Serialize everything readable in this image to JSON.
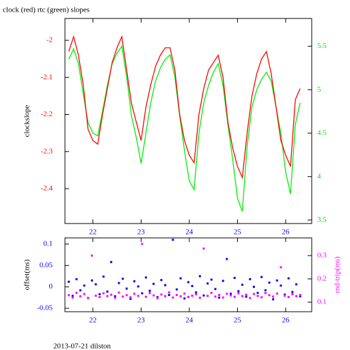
{
  "footer": "2013-07-21 dilston",
  "chart_data": [
    {
      "type": "line",
      "title": "clock (red) rtc (green) slopes",
      "y_label": "clockslope",
      "xlim": [
        21.42,
        26.54
      ],
      "xticks": [
        22,
        23,
        24,
        25,
        26
      ],
      "xtick_color": "#0000ff",
      "ylim": [
        -2.494,
        -1.941
      ],
      "yticks": [
        -2.4,
        -2.3,
        -2.2,
        -2.1,
        -2
      ],
      "ytick_color": "#ff0000",
      "y2lim": [
        3.46,
        5.82
      ],
      "y2ticks": [
        3.5,
        4,
        4.5,
        5,
        5.5
      ],
      "y2tick_color": "#00dd00",
      "x": [
        21.5,
        21.6,
        21.7,
        21.8,
        21.9,
        22.0,
        22.1,
        22.2,
        22.3,
        22.4,
        22.5,
        22.6,
        22.7,
        22.8,
        22.9,
        23.0,
        23.1,
        23.2,
        23.3,
        23.4,
        23.5,
        23.6,
        23.7,
        23.8,
        23.9,
        24.0,
        24.1,
        24.2,
        24.3,
        24.4,
        24.5,
        24.6,
        24.7,
        24.8,
        24.9,
        25.0,
        25.1,
        25.2,
        25.3,
        25.4,
        25.5,
        25.6,
        25.7,
        25.8,
        25.9,
        26.0,
        26.1,
        26.2,
        26.3
      ],
      "series": [
        {
          "color": "#00ee00",
          "axis": "y2",
          "values": [
            5.35,
            5.47,
            5.3,
            4.95,
            4.62,
            4.5,
            4.47,
            4.75,
            5.05,
            5.3,
            5.42,
            5.5,
            5.15,
            4.7,
            4.45,
            4.15,
            4.5,
            4.85,
            5.1,
            5.25,
            5.35,
            5.4,
            5.15,
            4.7,
            4.3,
            3.95,
            3.85,
            4.5,
            4.85,
            5.05,
            5.2,
            5.3,
            5.05,
            4.6,
            4.2,
            3.75,
            3.6,
            4.35,
            4.8,
            5.0,
            5.12,
            5.2,
            5.1,
            4.8,
            4.5,
            4.05,
            3.8,
            4.6,
            4.85
          ]
        },
        {
          "color": "#ff0000",
          "axis": "y",
          "values": [
            -2.03,
            -1.99,
            -2.04,
            -2.12,
            -2.24,
            -2.27,
            -2.28,
            -2.2,
            -2.13,
            -2.06,
            -2.02,
            -1.99,
            -2.08,
            -2.17,
            -2.22,
            -2.27,
            -2.18,
            -2.12,
            -2.07,
            -2.04,
            -2.02,
            -2.02,
            -2.08,
            -2.2,
            -2.27,
            -2.31,
            -2.33,
            -2.2,
            -2.13,
            -2.08,
            -2.06,
            -2.04,
            -2.1,
            -2.22,
            -2.29,
            -2.34,
            -2.37,
            -2.25,
            -2.15,
            -2.09,
            -2.05,
            -2.03,
            -2.09,
            -2.18,
            -2.27,
            -2.31,
            -2.34,
            -2.16,
            -2.13
          ]
        }
      ]
    },
    {
      "type": "scatter",
      "y_label": "offset(ms)",
      "y2_label": "rnd-trip(ms)",
      "xlim": [
        21.42,
        26.54
      ],
      "xticks": [
        22,
        23,
        24,
        25,
        26
      ],
      "xtick_color": "#0000ff",
      "ylim": [
        -0.058,
        0.1144
      ],
      "yticks": [
        -0.05,
        0,
        0.05,
        0.1
      ],
      "ytick_color": "#0000ff",
      "y2lim": [
        0.059,
        0.376
      ],
      "y2ticks": [
        0.1,
        0.2,
        0.3
      ],
      "y2tick_color": "#ff00ff",
      "x": [
        21.5,
        21.58,
        21.66,
        21.74,
        21.82,
        21.9,
        21.98,
        22.06,
        22.14,
        22.22,
        22.3,
        22.38,
        22.46,
        22.54,
        22.62,
        22.7,
        22.78,
        22.86,
        22.94,
        23.02,
        23.1,
        23.18,
        23.26,
        23.34,
        23.42,
        23.5,
        23.58,
        23.66,
        23.74,
        23.82,
        23.9,
        23.98,
        24.06,
        24.14,
        24.22,
        24.3,
        24.38,
        24.46,
        24.54,
        24.62,
        24.7,
        24.78,
        24.86,
        24.94,
        25.02,
        25.1,
        25.18,
        25.26,
        25.34,
        25.42,
        25.5,
        25.58,
        25.66,
        25.74,
        25.82,
        25.9,
        25.98,
        26.06,
        26.14,
        26.22,
        26.3
      ],
      "series": [
        {
          "color": "#0000ff",
          "axis": "y",
          "values": [
            0.012,
            -0.021,
            0.018,
            -0.008,
            0.003,
            -0.026,
            0.015,
            0.006,
            -0.017,
            0.024,
            -0.011,
            0.058,
            -0.022,
            0.009,
            0.019,
            -0.004,
            -0.028,
            0.013,
            0.001,
            -0.015,
            0.022,
            -0.009,
            0.007,
            -0.024,
            0.016,
            0.004,
            -0.019,
            0.11,
            -0.006,
            0.02,
            -0.027,
            0.011,
            0.002,
            -0.013,
            0.025,
            -0.02,
            0.008,
            0.017,
            -0.005,
            -0.025,
            0.014,
            0.065,
            -0.016,
            0.021,
            -0.01,
            0.005,
            -0.023,
            0.018,
            0,
            -0.014,
            0.023,
            -0.008,
            0.01,
            -0.029,
            0.015,
            0.003,
            -0.018,
            0.02,
            -0.012,
            0.006,
            -0.022
          ]
        },
        {
          "color": "#ff00ff",
          "axis": "y2",
          "values": [
            0.13,
            0.12,
            0.14,
            0.125,
            0.135,
            0.118,
            0.3,
            0.128,
            0.122,
            0.138,
            0.126,
            0.132,
            0.119,
            0.141,
            0.124,
            0.13,
            0.121,
            0.136,
            0.127,
            0.35,
            0.123,
            0.139,
            0.129,
            0.117,
            0.133,
            0.126,
            0.142,
            0.12,
            0.131,
            0.125,
            0.137,
            0.122,
            0.128,
            0.134,
            0.119,
            0.33,
            0.127,
            0.14,
            0.124,
            0.131,
            0.12,
            0.136,
            0.129,
            0.123,
            0.138,
            0.126,
            0.132,
            0.118,
            0.135,
            0.127,
            0.121,
            0.139,
            0.13,
            0.124,
            0.137,
            0.25,
            0.128,
            0.122,
            0.134,
            0.126,
            0.131
          ]
        }
      ]
    }
  ]
}
